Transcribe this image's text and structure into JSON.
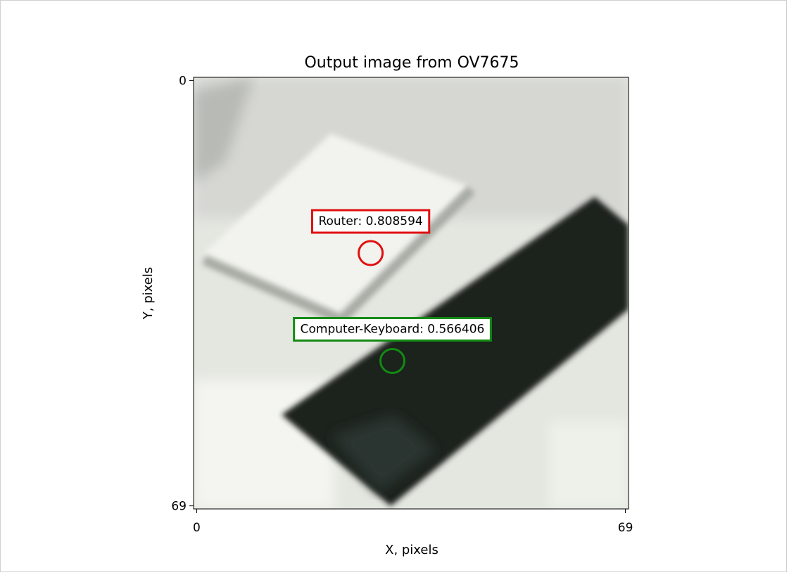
{
  "chart_data": {
    "type": "image",
    "title": "Output image from OV7675",
    "x_label": "X, pixels",
    "y_label": "Y, pixels",
    "xlim": [
      -0.5,
      69.5
    ],
    "ylim": [
      69.5,
      -0.5
    ],
    "xticks": [
      0,
      69
    ],
    "yticks": [
      0,
      69
    ],
    "detections": [
      {
        "label": "Router: 0.808594",
        "x": 28,
        "y": 28,
        "color": "#e01010"
      },
      {
        "label": "Computer-Keyboard: 0.566406",
        "x": 31.5,
        "y": 45.5,
        "color": "#138a13"
      }
    ]
  }
}
